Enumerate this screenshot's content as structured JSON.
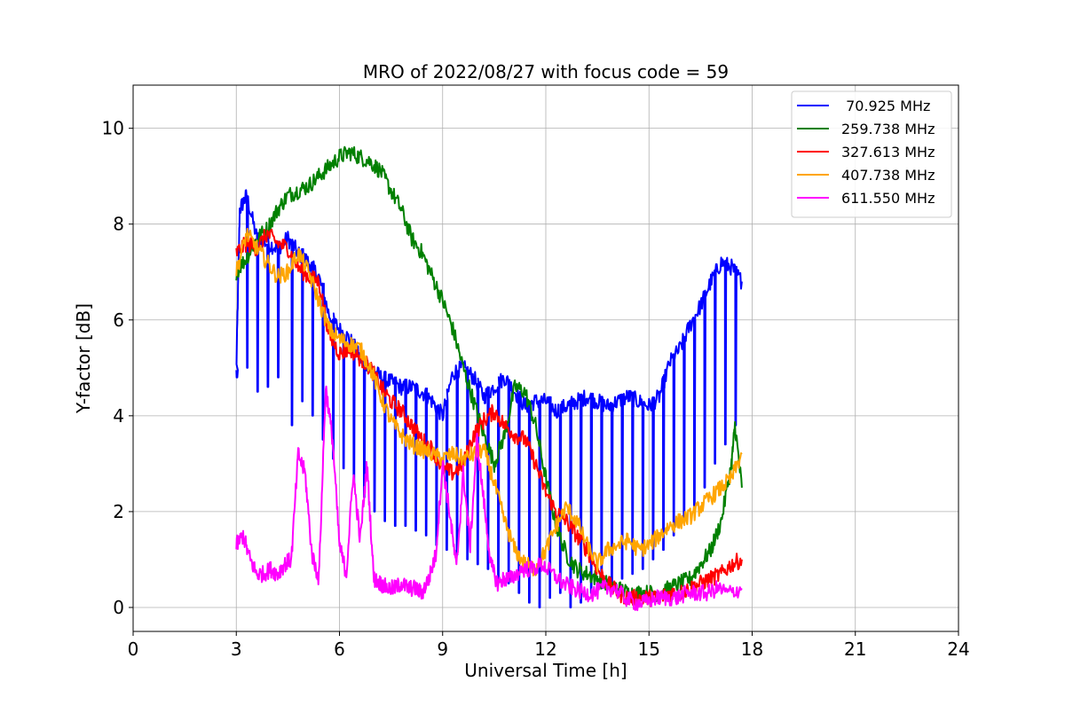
{
  "chart_data": {
    "type": "line",
    "title": "MRO of 2022/08/27 with focus code = 59",
    "xlabel": "Universal Time [h]",
    "ylabel": "Y-factor [dB]",
    "xlim": [
      0,
      24
    ],
    "ylim": [
      -0.5,
      10.9
    ],
    "xticks": [
      0,
      3,
      6,
      9,
      12,
      15,
      18,
      21,
      24
    ],
    "yticks": [
      0,
      2,
      4,
      6,
      8,
      10
    ],
    "grid": true,
    "legend_position": "top-right",
    "series": [
      {
        "name": " 70.925 MHz",
        "color": "#0000ff",
        "x": [
          3.0,
          3.1,
          3.3,
          3.6,
          3.9,
          4.2,
          4.5,
          4.8,
          5.1,
          5.4,
          5.7,
          6.0,
          6.3,
          6.6,
          6.9,
          7.2,
          7.5,
          7.8,
          8.1,
          8.4,
          8.7,
          9.0,
          9.3,
          9.6,
          9.9,
          10.2,
          10.5,
          10.8,
          11.1,
          11.4,
          11.7,
          12.0,
          12.3,
          12.6,
          12.9,
          13.2,
          13.5,
          13.8,
          14.1,
          14.4,
          14.7,
          15.0,
          15.3,
          15.6,
          15.9,
          16.2,
          16.5,
          16.8,
          17.1,
          17.4,
          17.7
        ],
        "values": [
          4.9,
          8.3,
          8.6,
          7.7,
          7.6,
          7.5,
          7.7,
          7.4,
          7.2,
          6.9,
          6.1,
          5.8,
          5.6,
          5.2,
          5.0,
          4.8,
          4.7,
          4.6,
          4.6,
          4.5,
          4.3,
          4.0,
          4.9,
          5.0,
          4.8,
          4.4,
          4.6,
          4.8,
          4.5,
          4.2,
          4.3,
          4.3,
          4.1,
          4.2,
          4.3,
          4.4,
          4.3,
          4.2,
          4.3,
          4.4,
          4.3,
          4.2,
          4.4,
          5.1,
          5.4,
          5.9,
          6.3,
          6.8,
          7.2,
          7.1,
          6.8
        ],
        "dips": [
          3.0,
          3.3,
          3.6,
          3.9,
          4.2,
          4.6,
          4.9,
          5.2,
          5.5,
          5.8,
          6.1,
          6.4,
          6.7,
          7.0,
          7.3,
          7.6,
          7.9,
          8.2,
          8.5,
          8.8,
          9.1,
          9.4,
          9.7,
          10.0,
          10.3,
          10.6,
          10.9,
          11.2,
          11.5,
          11.8,
          12.1,
          12.4,
          12.7,
          13.0,
          13.3,
          13.6,
          13.9,
          14.2,
          14.5,
          14.8,
          15.1,
          15.4,
          15.7,
          16.0,
          16.3,
          16.6,
          16.9,
          17.2,
          17.5
        ],
        "dip_values": [
          4.8,
          5.0,
          4.5,
          4.6,
          4.8,
          3.8,
          4.3,
          4.0,
          3.5,
          3.1,
          2.9,
          2.6,
          2.3,
          2.0,
          1.8,
          1.7,
          1.7,
          1.6,
          1.5,
          1.3,
          1.2,
          1.1,
          1.0,
          0.9,
          0.8,
          0.6,
          0.5,
          0.3,
          0.1,
          0.0,
          0.2,
          0.3,
          0.0,
          0.1,
          0.3,
          0.4,
          0.5,
          0.6,
          0.7,
          0.8,
          1.0,
          1.2,
          1.5,
          1.8,
          2.1,
          2.5,
          3.0,
          3.4,
          3.8
        ]
      },
      {
        "name": "259.738 MHz",
        "color": "#008000",
        "x": [
          3.0,
          3.3,
          3.6,
          3.9,
          4.2,
          4.5,
          4.8,
          5.1,
          5.4,
          5.7,
          6.0,
          6.3,
          6.6,
          6.9,
          7.2,
          7.5,
          7.8,
          8.1,
          8.4,
          8.7,
          9.0,
          9.3,
          9.6,
          9.9,
          10.2,
          10.5,
          10.8,
          11.1,
          11.4,
          11.7,
          12.0,
          12.3,
          12.6,
          12.9,
          13.2,
          13.5,
          13.8,
          14.1,
          14.4,
          14.7,
          15.0,
          15.3,
          15.6,
          15.9,
          16.2,
          16.5,
          16.8,
          17.1,
          17.4,
          17.5,
          17.7
        ],
        "values": [
          7.0,
          7.3,
          7.7,
          7.9,
          8.3,
          8.6,
          8.7,
          8.8,
          9.0,
          9.2,
          9.4,
          9.5,
          9.4,
          9.3,
          9.1,
          8.7,
          8.3,
          7.7,
          7.4,
          6.9,
          6.4,
          5.8,
          5.0,
          4.3,
          3.6,
          3.0,
          3.6,
          4.6,
          4.5,
          3.8,
          2.7,
          1.7,
          1.1,
          0.8,
          0.7,
          0.6,
          0.5,
          0.4,
          0.3,
          0.3,
          0.3,
          0.3,
          0.4,
          0.5,
          0.6,
          0.9,
          1.2,
          1.8,
          3.0,
          3.8,
          2.5
        ]
      },
      {
        "name": "327.613 MHz",
        "color": "#ff0000",
        "x": [
          3.0,
          3.3,
          3.6,
          3.9,
          4.2,
          4.5,
          4.8,
          5.1,
          5.4,
          5.7,
          6.0,
          6.3,
          6.6,
          6.9,
          7.2,
          7.5,
          7.8,
          8.1,
          8.4,
          8.7,
          9.0,
          9.3,
          9.6,
          9.9,
          10.2,
          10.5,
          10.8,
          11.1,
          11.4,
          11.7,
          12.0,
          12.3,
          12.6,
          12.9,
          13.2,
          13.5,
          13.8,
          14.1,
          14.4,
          14.7,
          15.0,
          15.3,
          15.6,
          15.9,
          16.2,
          16.5,
          16.8,
          17.1,
          17.4,
          17.7
        ],
        "values": [
          7.4,
          7.6,
          7.5,
          7.8,
          7.6,
          7.5,
          7.1,
          6.9,
          6.8,
          5.7,
          5.3,
          5.4,
          5.2,
          5.0,
          4.6,
          4.3,
          4.1,
          3.8,
          3.5,
          3.3,
          2.9,
          2.8,
          3.0,
          3.6,
          3.9,
          4.1,
          3.8,
          3.6,
          3.5,
          3.0,
          2.4,
          2.0,
          1.8,
          1.5,
          1.2,
          0.8,
          0.5,
          0.3,
          0.2,
          0.2,
          0.2,
          0.2,
          0.3,
          0.3,
          0.4,
          0.5,
          0.6,
          0.7,
          0.9,
          1.0
        ]
      },
      {
        "name": "407.738 MHz",
        "color": "#ffa500",
        "x": [
          3.0,
          3.3,
          3.6,
          3.9,
          4.2,
          4.5,
          4.8,
          5.1,
          5.4,
          5.7,
          6.0,
          6.3,
          6.6,
          6.9,
          7.2,
          7.5,
          7.8,
          8.1,
          8.4,
          8.7,
          9.0,
          9.3,
          9.6,
          9.9,
          10.2,
          10.5,
          10.8,
          11.1,
          11.4,
          11.7,
          12.0,
          12.3,
          12.6,
          12.9,
          13.2,
          13.5,
          13.8,
          14.1,
          14.4,
          14.7,
          15.0,
          15.3,
          15.6,
          15.9,
          16.2,
          16.5,
          16.8,
          17.1,
          17.4,
          17.7
        ],
        "values": [
          7.0,
          7.8,
          7.5,
          7.2,
          6.9,
          7.0,
          7.4,
          7.0,
          6.4,
          5.8,
          5.6,
          5.5,
          5.4,
          5.0,
          4.4,
          3.9,
          3.6,
          3.4,
          3.3,
          3.2,
          3.1,
          3.2,
          3.1,
          3.2,
          3.3,
          2.6,
          1.8,
          1.2,
          0.9,
          0.8,
          1.2,
          1.7,
          2.1,
          1.8,
          1.3,
          0.9,
          1.2,
          1.3,
          1.4,
          1.2,
          1.3,
          1.5,
          1.7,
          1.8,
          1.9,
          2.1,
          2.3,
          2.5,
          2.7,
          3.2
        ]
      },
      {
        "name": "611.550 MHz",
        "color": "#ff00ff",
        "x": [
          3.0,
          3.2,
          3.4,
          3.6,
          3.8,
          4.0,
          4.2,
          4.4,
          4.6,
          4.8,
          5.0,
          5.2,
          5.4,
          5.6,
          5.8,
          6.0,
          6.2,
          6.4,
          6.6,
          6.8,
          7.0,
          7.2,
          7.4,
          7.6,
          7.8,
          8.0,
          8.2,
          8.4,
          8.6,
          8.8,
          9.0,
          9.2,
          9.4,
          9.6,
          9.8,
          10.0,
          10.2,
          10.4,
          10.6,
          10.8,
          11.0,
          11.3,
          11.6,
          11.9,
          12.2,
          12.5,
          12.8,
          13.1,
          13.4,
          13.7,
          14.0,
          14.3,
          14.6,
          14.9,
          15.2,
          15.5,
          15.8,
          16.1,
          16.4,
          16.7,
          17.0,
          17.3,
          17.7
        ],
        "values": [
          1.3,
          1.5,
          1.0,
          0.7,
          0.7,
          0.8,
          0.7,
          0.9,
          1.0,
          3.2,
          2.8,
          1.1,
          0.6,
          4.6,
          3.5,
          1.3,
          0.7,
          2.8,
          1.4,
          3.0,
          0.6,
          0.5,
          0.4,
          0.4,
          0.5,
          0.4,
          0.4,
          0.3,
          0.6,
          1.1,
          3.0,
          2.0,
          0.8,
          2.8,
          1.3,
          3.5,
          2.2,
          0.9,
          0.5,
          0.6,
          0.6,
          0.8,
          0.8,
          0.9,
          0.7,
          0.5,
          0.4,
          0.3,
          0.3,
          0.4,
          0.4,
          0.2,
          0.1,
          0.1,
          0.2,
          0.2,
          0.2,
          0.3,
          0.3,
          0.3,
          0.4,
          0.3,
          0.4
        ]
      }
    ]
  }
}
